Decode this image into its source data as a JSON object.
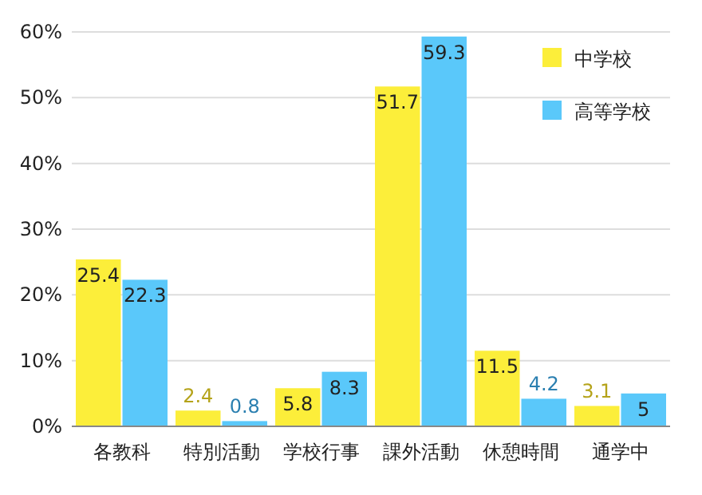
{
  "chart_data": {
    "type": "bar",
    "categories": [
      "各教科",
      "特別活動",
      "学校行事",
      "課外活動",
      "休憩時間",
      "通学中"
    ],
    "series": [
      {
        "name": "中学校",
        "color": "#fcee3a",
        "values": [
          25.4,
          2.4,
          5.8,
          51.7,
          11.5,
          3.1
        ]
      },
      {
        "name": "高等学校",
        "color": "#5ac8fa",
        "values": [
          22.3,
          0.8,
          8.3,
          59.3,
          4.2,
          5
        ]
      }
    ],
    "ylim": [
      0,
      60
    ],
    "yticks": [
      {
        "value": 0,
        "label": "0%"
      },
      {
        "value": 10,
        "label": "10%"
      },
      {
        "value": 20,
        "label": "20%"
      },
      {
        "value": 30,
        "label": "30%"
      },
      {
        "value": 40,
        "label": "40%"
      },
      {
        "value": 50,
        "label": "50%"
      },
      {
        "value": 60,
        "label": "60%"
      }
    ],
    "grid": "y",
    "legend": "top right",
    "data_labels": true
  }
}
